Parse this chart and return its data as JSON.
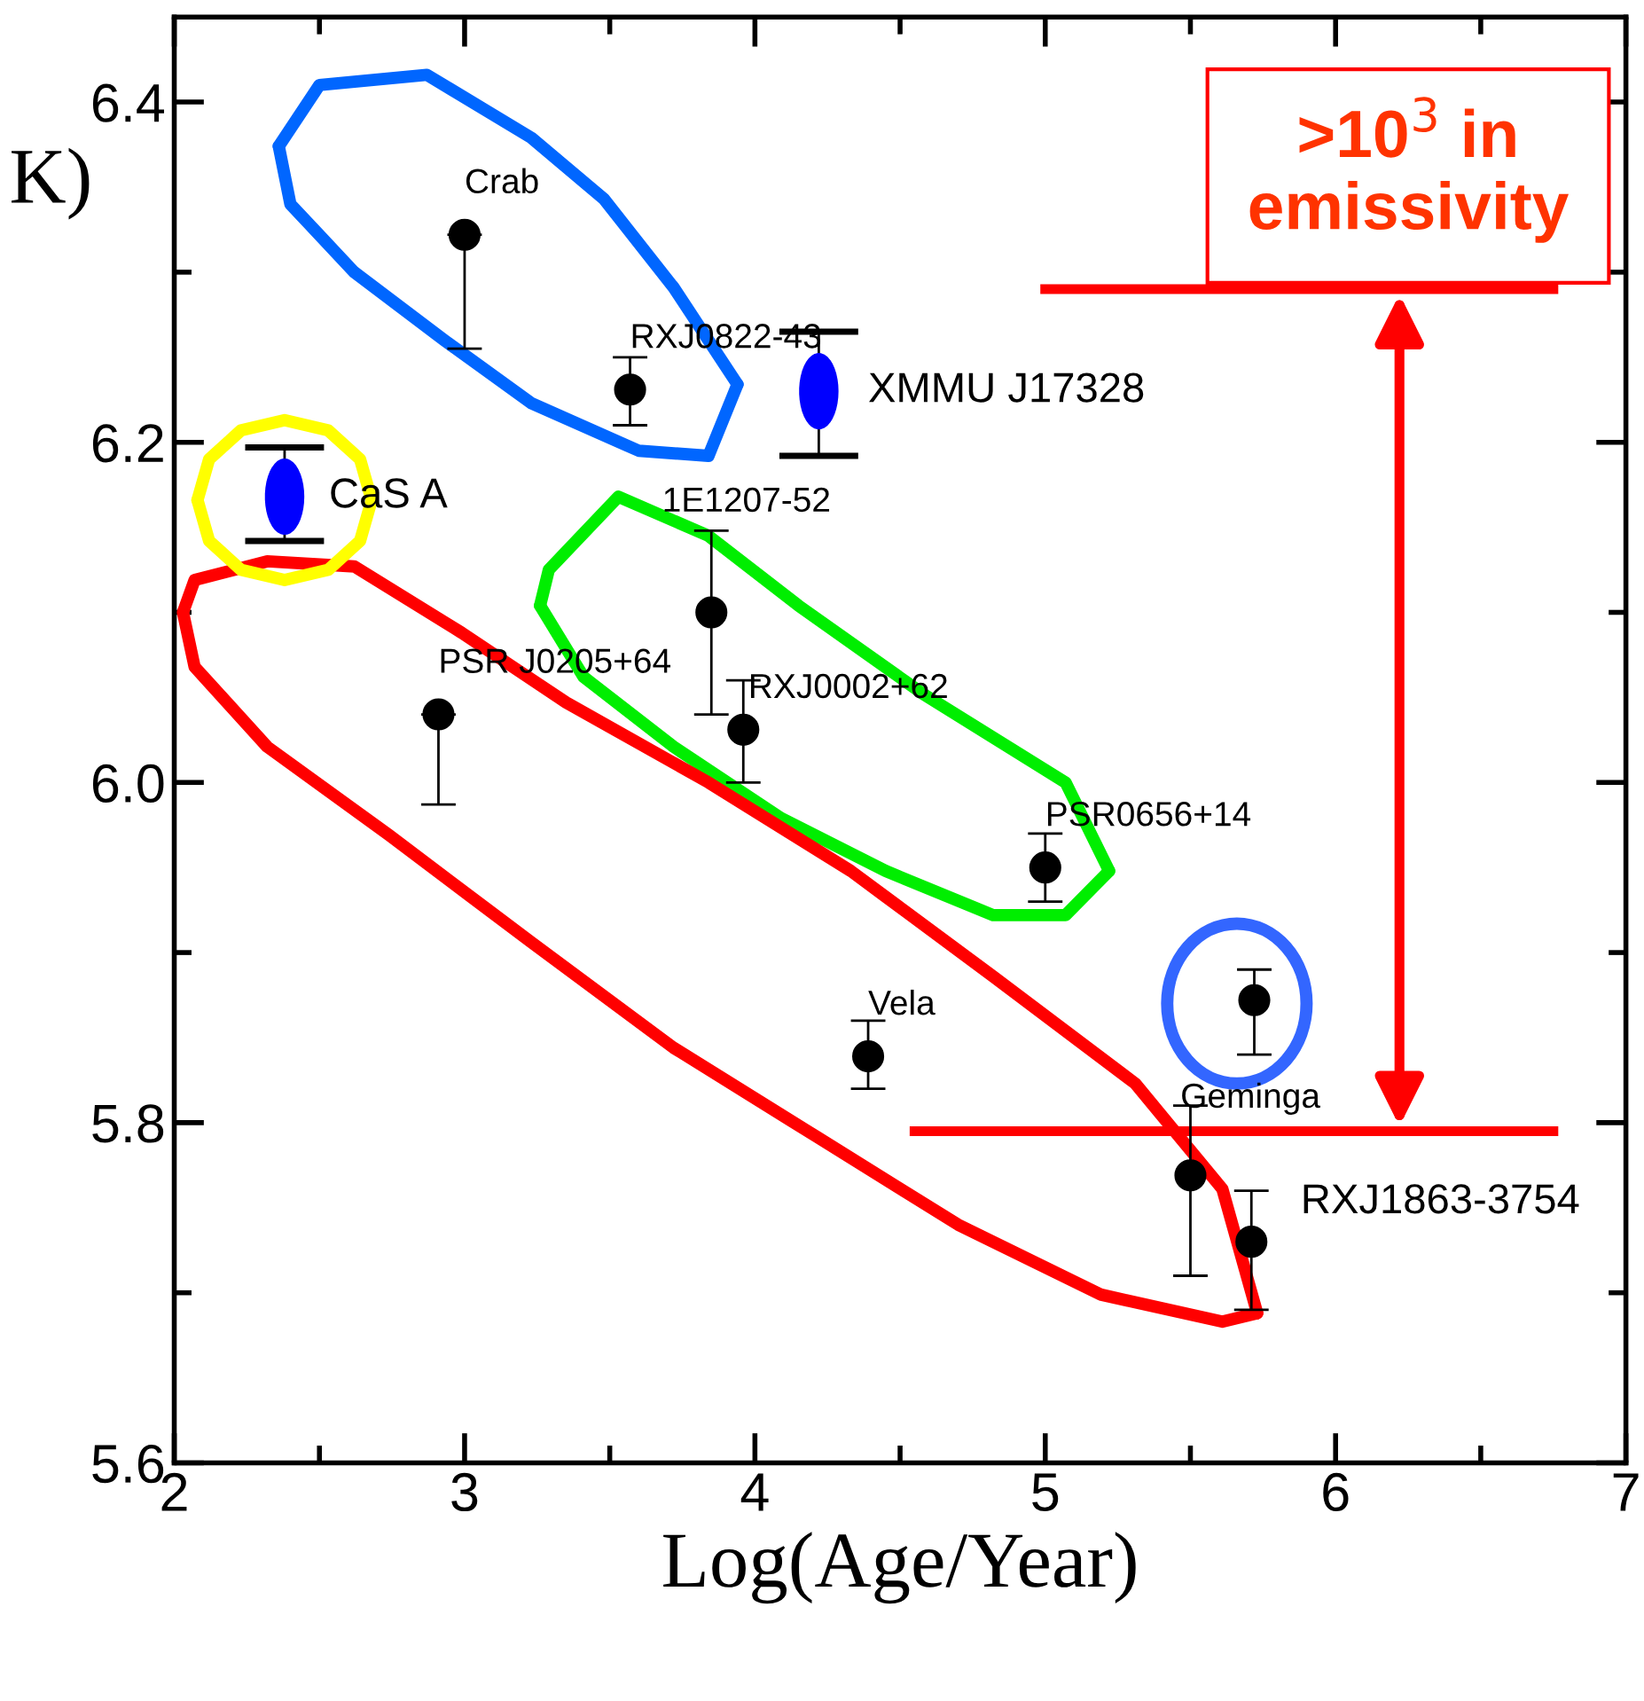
{
  "chart_data": {
    "type": "scatter",
    "xlabel": "Log(Age/Year)",
    "ylabel": "K)",
    "xlim": [
      2,
      7
    ],
    "ylim": [
      5.6,
      6.45
    ],
    "xticks": [
      2,
      3,
      4,
      5,
      6,
      7
    ],
    "yticks": [
      {
        "value": 5.6,
        "label": "5.6"
      },
      {
        "value": 5.8,
        "label": "5.8"
      },
      {
        "value": 6.0,
        "label": "6.0"
      },
      {
        "value": 6.2,
        "label": "6.2"
      },
      {
        "value": 6.4,
        "label": "6.4"
      }
    ],
    "marker": "circle",
    "grid": false,
    "series": [
      {
        "color": "#000000",
        "x": [
          3.0,
          3.57,
          2.91,
          3.85,
          3.96,
          5.0,
          4.39,
          5.72,
          5.5,
          5.71
        ],
        "values": [
          6.322,
          6.231,
          6.04,
          6.1,
          6.031,
          5.95,
          5.839,
          5.872,
          5.769,
          5.73
        ],
        "errors": [
          [
            6.255,
            6.322
          ],
          [
            6.21,
            6.25
          ],
          [
            5.987,
            6.04
          ],
          [
            6.04,
            6.148
          ],
          [
            6.0,
            6.06
          ],
          [
            5.93,
            5.97
          ],
          [
            5.82,
            5.86
          ],
          [
            5.84,
            5.89
          ],
          [
            5.71,
            5.81
          ],
          [
            5.69,
            5.76
          ]
        ]
      },
      {
        "color": "#0000ff",
        "x": [
          2.38,
          4.22
        ],
        "values": [
          6.168,
          6.23
        ],
        "errors": [
          [
            6.142,
            6.197
          ],
          [
            6.192,
            6.265
          ]
        ]
      },
      {
        "type": "line",
        "marker": "none",
        "color": "#0066ff",
        "x": [
          2.36,
          2.5,
          2.87,
          3.23,
          3.48,
          3.72,
          3.94
        ],
        "values": [
          6.374,
          6.41,
          6.416,
          6.379,
          6.343,
          6.291,
          6.234
        ]
      },
      {
        "type": "line",
        "marker": "none",
        "color": "#0066ff",
        "x": [
          2.36,
          2.4,
          2.62,
          2.93,
          3.23,
          3.6,
          3.84,
          3.94
        ],
        "values": [
          6.374,
          6.34,
          6.3,
          6.26,
          6.223,
          6.195,
          6.192,
          6.234
        ]
      },
      {
        "type": "line",
        "marker": "none",
        "color": "#00ee00",
        "x": [
          3.26,
          3.29,
          3.53,
          3.84,
          4.15,
          4.58,
          5.07,
          5.22
        ],
        "values": [
          6.104,
          6.125,
          6.168,
          6.145,
          6.104,
          6.052,
          6.0,
          5.948
        ]
      },
      {
        "type": "line",
        "marker": "none",
        "color": "#00ee00",
        "x": [
          3.26,
          3.41,
          3.72,
          4.09,
          4.45,
          4.82,
          5.07,
          5.22
        ],
        "values": [
          6.104,
          6.062,
          6.021,
          5.979,
          5.948,
          5.922,
          5.922,
          5.948
        ]
      },
      {
        "type": "line",
        "marker": "none",
        "color": "#ff0000",
        "x": [
          2.03,
          2.07,
          2.32,
          2.62,
          2.99,
          3.35,
          3.84,
          4.33,
          4.82,
          5.31,
          5.61,
          5.73
        ],
        "values": [
          6.1,
          6.119,
          6.13,
          6.127,
          6.088,
          6.047,
          6.0,
          5.948,
          5.886,
          5.823,
          5.761,
          5.688
        ]
      },
      {
        "type": "line",
        "marker": "none",
        "color": "#ff0000",
        "x": [
          2.03,
          2.07,
          2.32,
          2.74,
          3.23,
          3.72,
          4.21,
          4.7,
          5.19,
          5.61,
          5.73
        ],
        "values": [
          6.1,
          6.068,
          6.021,
          5.969,
          5.906,
          5.844,
          5.792,
          5.74,
          5.699,
          5.683,
          5.688
        ]
      },
      {
        "type": "line",
        "marker": "none",
        "color": "#ffff00",
        "x": [
          2.08,
          2.12,
          2.23,
          2.38,
          2.53,
          2.64,
          2.68
        ],
        "values": [
          6.166,
          6.19,
          6.207,
          6.213,
          6.207,
          6.19,
          6.166
        ]
      },
      {
        "type": "line",
        "marker": "none",
        "color": "#ffff00",
        "x": [
          2.08,
          2.12,
          2.23,
          2.38,
          2.53,
          2.64,
          2.68
        ],
        "values": [
          6.166,
          6.142,
          6.125,
          6.119,
          6.125,
          6.142,
          6.166
        ]
      }
    ],
    "ref_lines": [
      {
        "axis": "y",
        "value": 6.29,
        "color": "#ff0000"
      },
      {
        "axis": "y",
        "value": 5.795,
        "color": "#ff0000"
      }
    ],
    "annotations": [
      {
        "text": "Crab",
        "x": 3.0,
        "y": 6.322
      },
      {
        "text": "RXJ0822-43",
        "x": 3.57,
        "y": 6.231
      },
      {
        "text": "XMMU J17328",
        "x": 4.22,
        "y": 6.23
      },
      {
        "text": "1E1207-52",
        "x": 3.85,
        "y": 6.1
      },
      {
        "text": "CaS A",
        "x": 2.38,
        "y": 6.168
      },
      {
        "text": "PSR J0205+64",
        "x": 2.91,
        "y": 6.04
      },
      {
        "text": "RXJ0002+62",
        "x": 3.96,
        "y": 6.031
      },
      {
        "text": "PSR0656+14",
        "x": 5.0,
        "y": 5.95
      },
      {
        "text": "Vela",
        "x": 4.39,
        "y": 5.839
      },
      {
        "text": "Geminga",
        "x": 5.72,
        "y": 5.872
      },
      {
        "text": "RXJ1863-3754",
        "x": 5.71,
        "y": 5.73
      },
      ">10$^{3}$ in emissivity"
    ]
  }
}
